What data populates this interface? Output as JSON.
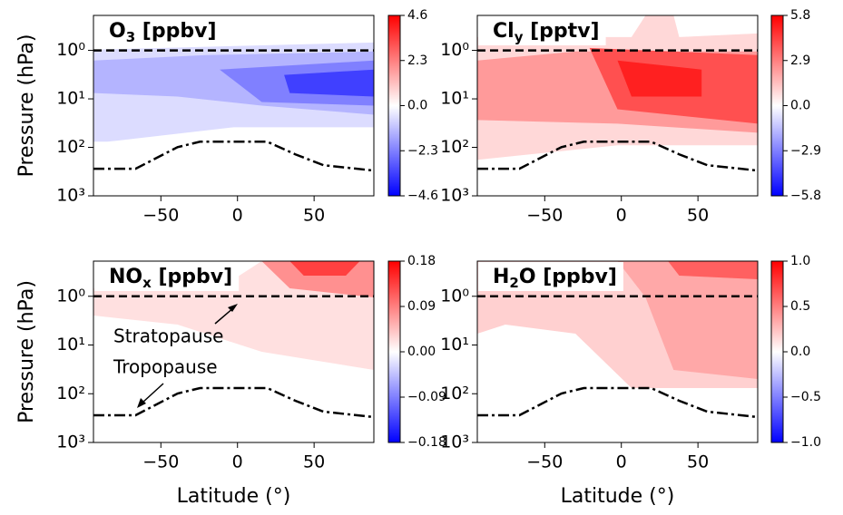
{
  "chart_data": [
    {
      "type": "contour",
      "title": {
        "main": "O",
        "sub": "3",
        "unit": " [ppbv]"
      },
      "colormap": "bwr",
      "ylog": true,
      "ylabel": "Pressure (hPa)",
      "xlim": [
        -94,
        89
      ],
      "xticks": [
        {
          "value": -50,
          "label": "−50"
        },
        0,
        50
      ],
      "ylim": [
        1000,
        0.19
      ],
      "yticks": [
        {
          "value": 1,
          "label": "10⁰"
        },
        {
          "value": 10,
          "label": "10¹"
        },
        {
          "value": 100,
          "label": "10²"
        },
        {
          "value": 1000,
          "label": "10³"
        }
      ],
      "clim": [
        -4.6,
        4.6
      ],
      "cticks": [
        4.6,
        2.3,
        {
          "value": 0,
          "label": "0.0"
        },
        {
          "value": -2.3,
          "label": "−2.3"
        },
        {
          "value": -4.6,
          "label": "−4.6"
        }
      ]
    },
    {
      "type": "contour",
      "title": {
        "main": "Cl",
        "sub": "y",
        "unit": " [pptv]"
      },
      "colormap": "bwr",
      "ylog": true,
      "xlim": [
        -94,
        89
      ],
      "xticks": [
        {
          "value": -50,
          "label": "−50"
        },
        0,
        50
      ],
      "ylim": [
        1000,
        0.19
      ],
      "yticks": [
        {
          "value": 1,
          "label": "10⁰"
        },
        {
          "value": 10,
          "label": "10¹"
        },
        {
          "value": 100,
          "label": "10²"
        },
        {
          "value": 1000,
          "label": "10³"
        }
      ],
      "clim": [
        -5.8,
        5.8
      ],
      "cticks": [
        5.8,
        2.9,
        {
          "value": 0,
          "label": "0.0"
        },
        {
          "value": -2.9,
          "label": "−2.9"
        },
        {
          "value": -5.8,
          "label": "−5.8"
        }
      ]
    },
    {
      "type": "contour",
      "title": {
        "main": "NO",
        "sub": "x",
        "unit": " [ppbv]"
      },
      "colormap": "bwr",
      "ylog": true,
      "ylabel": "Pressure (hPa)",
      "xlabel": "Latitude (°)",
      "annotations": [
        "Stratopause",
        "Tropopause"
      ],
      "xlim": [
        -94,
        89
      ],
      "xticks": [
        {
          "value": -50,
          "label": "−50"
        },
        0,
        50
      ],
      "ylim": [
        1000,
        0.19
      ],
      "yticks": [
        {
          "value": 1,
          "label": "10⁰"
        },
        {
          "value": 10,
          "label": "10¹"
        },
        {
          "value": 100,
          "label": "10²"
        },
        {
          "value": 1000,
          "label": "10³"
        }
      ],
      "clim": [
        -0.18,
        0.18
      ],
      "cticks": [
        0.18,
        0.09,
        {
          "value": 0,
          "label": "0.00"
        },
        {
          "value": -0.09,
          "label": "−0.09"
        },
        {
          "value": -0.18,
          "label": "−0.18"
        }
      ]
    },
    {
      "type": "contour",
      "title": {
        "main": "H",
        "sub": "2",
        "unit": "O [ppbv]"
      },
      "colormap": "bwr",
      "ylog": true,
      "xlabel": "Latitude (°)",
      "xlim": [
        -94,
        89
      ],
      "xticks": [
        {
          "value": -50,
          "label": "−50"
        },
        0,
        50
      ],
      "ylim": [
        1000,
        0.19
      ],
      "yticks": [
        {
          "value": 1,
          "label": "10⁰"
        },
        {
          "value": 10,
          "label": "10¹"
        },
        {
          "value": 100,
          "label": "10²"
        },
        {
          "value": 1000,
          "label": "10³"
        }
      ],
      "clim": [
        -1.0,
        1.0
      ],
      "cticks": [
        {
          "value": 1,
          "label": "1.0"
        },
        0.5,
        {
          "value": 0,
          "label": "0.0"
        },
        {
          "value": -0.5,
          "label": "−0.5"
        },
        {
          "value": -1,
          "label": "−1.0"
        }
      ]
    }
  ]
}
